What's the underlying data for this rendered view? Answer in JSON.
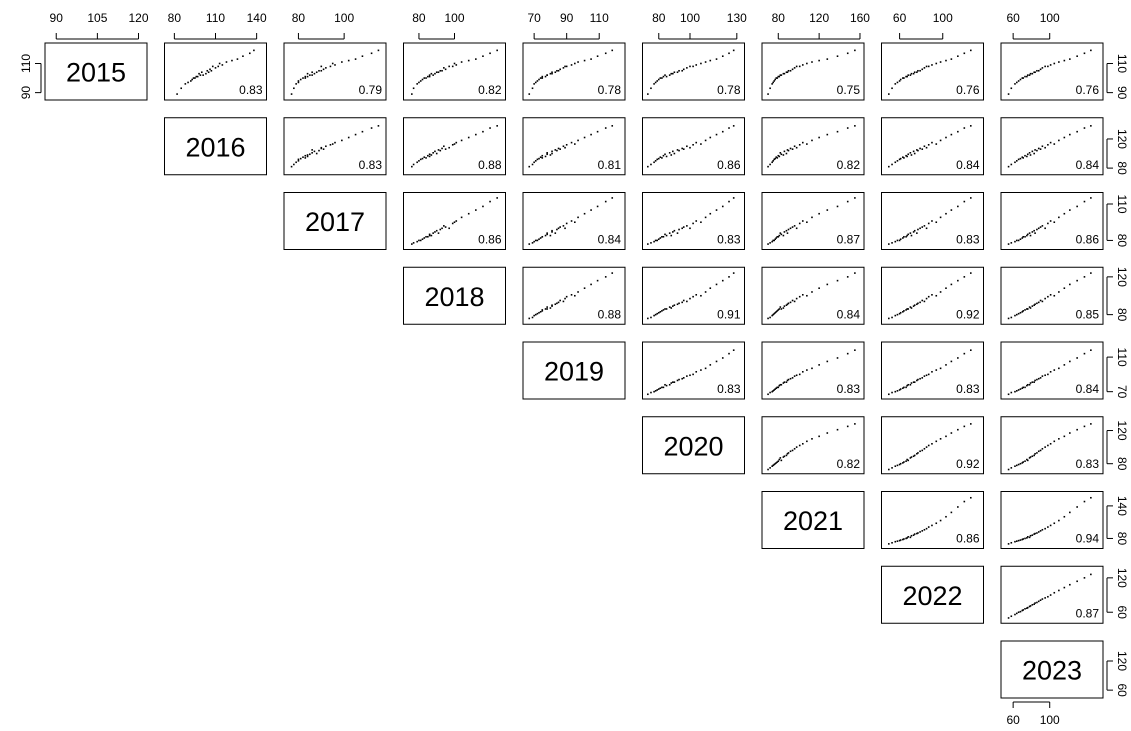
{
  "chart_data": {
    "type": "scatter-matrix",
    "point_color": "#000000",
    "variables": [
      {
        "name": "2015",
        "lim": [
          87,
          122
        ],
        "xticks": [
          90,
          105,
          120
        ],
        "yticks": [
          90,
          110
        ],
        "values": [
          89,
          93,
          96,
          97,
          98,
          99,
          100,
          100,
          101,
          101,
          102,
          102,
          103,
          103,
          104,
          104,
          105,
          105,
          106,
          107,
          108,
          108,
          109,
          110,
          111,
          112,
          113,
          115,
          117,
          119
        ]
      },
      {
        "name": "2016",
        "lim": [
          75,
          145
        ],
        "xticks": [
          80,
          110,
          140
        ],
        "yticks": [
          80,
          120
        ],
        "values": [
          82,
          85,
          88,
          90,
          92,
          93,
          95,
          94,
          97,
          96,
          99,
          101,
          98,
          103,
          100,
          105,
          104,
          107,
          106,
          110,
          108,
          112,
          115,
          113,
          118,
          122,
          126,
          130,
          135,
          138
        ]
      },
      {
        "name": "2017",
        "lim": [
          75,
          117
        ],
        "xticks": [
          80,
          100
        ],
        "yticks": [
          80,
          110
        ],
        "values": [
          77,
          78,
          79,
          80,
          80,
          81,
          82,
          83,
          83,
          84,
          85,
          86,
          84,
          87,
          88,
          86,
          89,
          90,
          91,
          92,
          90,
          94,
          96,
          95,
          99,
          102,
          105,
          108,
          112,
          115
        ]
      },
      {
        "name": "2018",
        "lim": [
          73,
          127
        ],
        "xticks": [
          80,
          100
        ],
        "yticks": [
          80,
          120
        ],
        "values": [
          76,
          77,
          79,
          80,
          81,
          82,
          83,
          84,
          85,
          86,
          86,
          88,
          87,
          89,
          90,
          91,
          92,
          93,
          95,
          94,
          97,
          99,
          101,
          100,
          104,
          108,
          112,
          116,
          120,
          124
        ]
      },
      {
        "name": "2019",
        "lim": [
          65,
          124
        ],
        "xticks": [
          70,
          90,
          110
        ],
        "yticks": [
          70,
          110
        ],
        "values": [
          67,
          69,
          70,
          71,
          72,
          73,
          74,
          75,
          75,
          77,
          78,
          78,
          80,
          81,
          81,
          83,
          84,
          85,
          86,
          88,
          89,
          90,
          93,
          95,
          97,
          101,
          105,
          109,
          114,
          118
        ]
      },
      {
        "name": "2020",
        "lim": [
          71.5,
          133
        ],
        "xticks": [
          80,
          100,
          130
        ],
        "yticks": [
          80,
          120
        ],
        "values": [
          73,
          75,
          77,
          78,
          79,
          80,
          81,
          82,
          83,
          85,
          84,
          87,
          88,
          89,
          90,
          92,
          93,
          95,
          96,
          98,
          100,
          102,
          104,
          107,
          110,
          113,
          117,
          121,
          125,
          128
        ]
      },
      {
        "name": "2021",
        "lim": [
          67,
          161
        ],
        "xticks": [
          80,
          120,
          160
        ],
        "yticks": [
          80,
          140
        ],
        "values": [
          70,
          72,
          74,
          75,
          76,
          77,
          78,
          79,
          80,
          81,
          83,
          82,
          85,
          86,
          88,
          89,
          90,
          92,
          94,
          96,
          98,
          101,
          104,
          108,
          113,
          120,
          128,
          138,
          148,
          155
        ]
      },
      {
        "name": "2022",
        "lim": [
          46,
          135
        ],
        "xticks": [
          60,
          100
        ],
        "yticks": [
          60,
          120
        ],
        "values": [
          50,
          53,
          56,
          58,
          60,
          61,
          63,
          64,
          66,
          67,
          68,
          70,
          71,
          73,
          74,
          76,
          77,
          79,
          81,
          83,
          85,
          87,
          90,
          94,
          98,
          103,
          108,
          114,
          120,
          126
        ]
      },
      {
        "name": "2023",
        "lim": [
          50,
          155
        ],
        "xticks": [
          60,
          100
        ],
        "yticks": [
          60,
          120
        ],
        "values": [
          55,
          58,
          62,
          64,
          66,
          68,
          70,
          71,
          73,
          75,
          76,
          78,
          79,
          81,
          83,
          84,
          86,
          88,
          90,
          92,
          95,
          98,
          101,
          105,
          110,
          116,
          122,
          130,
          138,
          145
        ]
      }
    ],
    "correlations": [
      [
        0.83,
        0.79,
        0.82,
        0.78,
        0.78,
        0.75,
        0.76,
        0.76
      ],
      [
        0.83,
        0.88,
        0.81,
        0.86,
        0.82,
        0.84,
        0.84
      ],
      [
        0.86,
        0.84,
        0.83,
        0.87,
        0.83,
        0.86
      ],
      [
        0.88,
        0.91,
        0.84,
        0.92,
        0.85
      ],
      [
        0.83,
        0.83,
        0.83,
        0.84
      ],
      [
        0.82,
        0.92,
        0.83
      ],
      [
        0.86,
        0.94
      ],
      [
        0.87
      ]
    ]
  }
}
